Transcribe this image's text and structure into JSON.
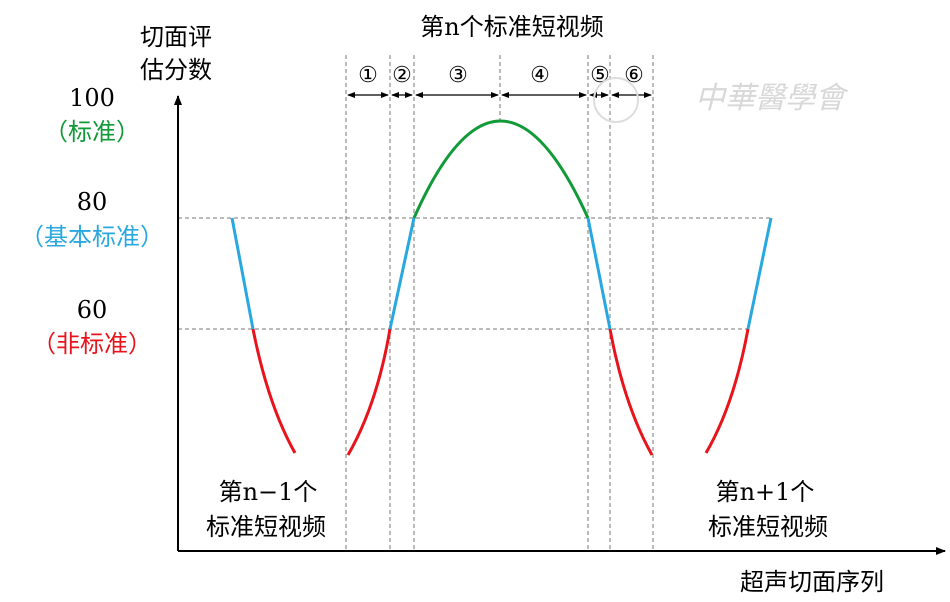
{
  "y_axis": {
    "label_lines": [
      "切面评",
      "估分数"
    ],
    "levels": [
      {
        "value": "100",
        "label": "（标准）"
      },
      {
        "value": "80",
        "label": "（基本标准）"
      },
      {
        "value": "60",
        "label": "（非标准）"
      }
    ]
  },
  "x_axis": {
    "label": "超声切面序列"
  },
  "title": "第n个标准短视频",
  "segments": [
    "①",
    "②",
    "③",
    "④",
    "⑤",
    "⑥"
  ],
  "previous_video": [
    "第n−1个",
    "标准短视频"
  ],
  "next_video": [
    "第n+1个",
    "标准短视频"
  ],
  "watermark": "中華醫學會"
}
